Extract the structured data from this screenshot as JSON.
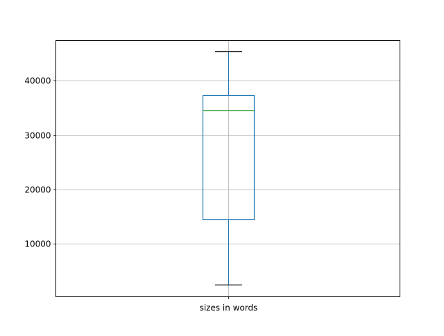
{
  "chart_data": {
    "type": "box",
    "categories": [
      "sizes in words"
    ],
    "boxes": [
      {
        "label": "sizes in words",
        "whisker_low": 2470,
        "q1": 14460,
        "median": 34490,
        "q3": 37300,
        "whisker_high": 45330
      }
    ],
    "title": "",
    "xlabel": "",
    "ylabel": "",
    "ylim": [
      300,
      47370
    ],
    "yticks": [
      10000,
      20000,
      30000,
      40000
    ],
    "ytick_labels": [
      "10000",
      "20000",
      "30000",
      "40000"
    ],
    "grid": true,
    "colors": {
      "box": "#1f77b4",
      "median": "#2ca02c",
      "caps": "#000000",
      "grid": "#b0b0b0"
    }
  }
}
